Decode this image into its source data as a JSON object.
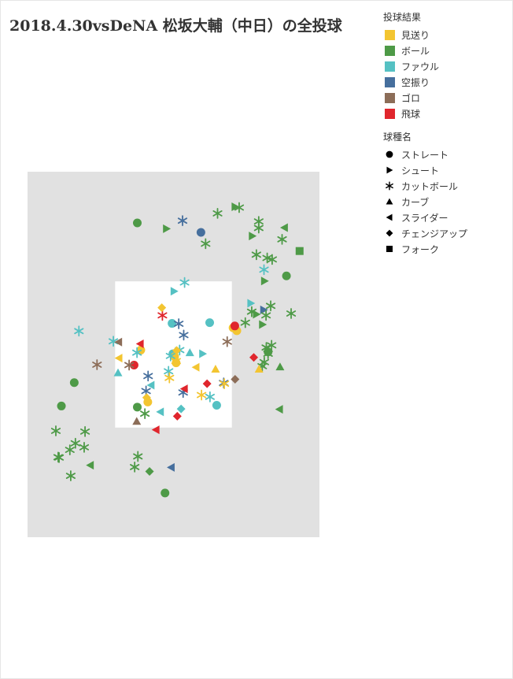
{
  "title": "2018.4.30vsDeNA 松坂大輔（中日）の全投球",
  "legend": {
    "result_title": "投球結果",
    "results": [
      {
        "key": "called_strike",
        "label": "見送り",
        "color": "#f3c531"
      },
      {
        "key": "ball",
        "label": "ボール",
        "color": "#4e9a47"
      },
      {
        "key": "foul",
        "label": "ファウル",
        "color": "#55c1c3"
      },
      {
        "key": "swinging_strike",
        "label": "空振り",
        "color": "#466f9d"
      },
      {
        "key": "grounder",
        "label": "ゴロ",
        "color": "#8c6d58"
      },
      {
        "key": "fly",
        "label": "飛球",
        "color": "#e0262d"
      }
    ],
    "pitch_title": "球種名",
    "pitches": [
      {
        "key": "straight",
        "label": "ストレート",
        "icon": "circle-icon"
      },
      {
        "key": "shoot",
        "label": "シュート",
        "icon": "triangle-right-icon"
      },
      {
        "key": "cutter",
        "label": "カットボール",
        "icon": "asterisk-icon"
      },
      {
        "key": "curve",
        "label": "カーブ",
        "icon": "triangle-up-icon"
      },
      {
        "key": "slider",
        "label": "スライダー",
        "icon": "triangle-left-icon"
      },
      {
        "key": "changeup",
        "label": "チェンジアップ",
        "icon": "diamond-icon"
      },
      {
        "key": "fork",
        "label": "フォーク",
        "icon": "square-icon"
      }
    ]
  },
  "chart_data": {
    "type": "scatter",
    "title": "2018.4.30vsDeNA 松坂大輔（中日）の全投球",
    "x_range": [
      0,
      100
    ],
    "y_range": [
      0,
      100
    ],
    "strike_zone": {
      "x": [
        30,
        70
      ],
      "y": [
        30,
        70
      ]
    },
    "color_by": "投球結果",
    "shape_by": "球種名",
    "points": [
      {
        "x": 37.6,
        "y": 86.0,
        "pitch": "straight",
        "result": "ball"
      },
      {
        "x": 47.1,
        "y": 12.1,
        "pitch": "straight",
        "result": "ball"
      },
      {
        "x": 16.0,
        "y": 42.3,
        "pitch": "straight",
        "result": "ball"
      },
      {
        "x": 11.6,
        "y": 35.9,
        "pitch": "straight",
        "result": "ball"
      },
      {
        "x": 37.6,
        "y": 35.6,
        "pitch": "straight",
        "result": "ball"
      },
      {
        "x": 88.7,
        "y": 71.5,
        "pitch": "straight",
        "result": "ball"
      },
      {
        "x": 82.4,
        "y": 50.7,
        "pitch": "straight",
        "result": "ball"
      },
      {
        "x": 59.4,
        "y": 83.4,
        "pitch": "straight",
        "result": "swinging_strike"
      },
      {
        "x": 62.4,
        "y": 58.7,
        "pitch": "straight",
        "result": "foul"
      },
      {
        "x": 49.5,
        "y": 58.5,
        "pitch": "straight",
        "result": "foul"
      },
      {
        "x": 49.8,
        "y": 50.2,
        "pitch": "straight",
        "result": "foul"
      },
      {
        "x": 64.8,
        "y": 36.1,
        "pitch": "straight",
        "result": "foul"
      },
      {
        "x": 38.8,
        "y": 51.2,
        "pitch": "straight",
        "result": "called_strike"
      },
      {
        "x": 50.4,
        "y": 49.4,
        "pitch": "straight",
        "result": "called_strike"
      },
      {
        "x": 50.9,
        "y": 47.7,
        "pitch": "straight",
        "result": "called_strike"
      },
      {
        "x": 41.2,
        "y": 37.0,
        "pitch": "straight",
        "result": "called_strike"
      },
      {
        "x": 70.4,
        "y": 57.3,
        "pitch": "straight",
        "result": "called_strike"
      },
      {
        "x": 71.7,
        "y": 56.5,
        "pitch": "straight",
        "result": "called_strike"
      },
      {
        "x": 36.5,
        "y": 47.1,
        "pitch": "straight",
        "result": "fly"
      },
      {
        "x": 71.0,
        "y": 57.8,
        "pitch": "straight",
        "result": "fly"
      },
      {
        "x": 47.6,
        "y": 84.4,
        "pitch": "shoot",
        "result": "ball"
      },
      {
        "x": 77.0,
        "y": 82.4,
        "pitch": "shoot",
        "result": "ball"
      },
      {
        "x": 71.1,
        "y": 90.4,
        "pitch": "shoot",
        "result": "ball"
      },
      {
        "x": 81.2,
        "y": 70.1,
        "pitch": "shoot",
        "result": "ball"
      },
      {
        "x": 78.4,
        "y": 61.0,
        "pitch": "shoot",
        "result": "ball"
      },
      {
        "x": 80.5,
        "y": 58.2,
        "pitch": "shoot",
        "result": "ball"
      },
      {
        "x": 50.2,
        "y": 67.3,
        "pitch": "shoot",
        "result": "foul"
      },
      {
        "x": 76.5,
        "y": 64.0,
        "pitch": "shoot",
        "result": "foul"
      },
      {
        "x": 60.0,
        "y": 50.2,
        "pitch": "shoot",
        "result": "foul"
      },
      {
        "x": 80.9,
        "y": 62.2,
        "pitch": "shoot",
        "result": "swinging_strike"
      },
      {
        "x": 65.1,
        "y": 88.6,
        "pitch": "cutter",
        "result": "ball"
      },
      {
        "x": 72.5,
        "y": 90.2,
        "pitch": "cutter",
        "result": "ball"
      },
      {
        "x": 79.2,
        "y": 86.4,
        "pitch": "cutter",
        "result": "ball"
      },
      {
        "x": 79.2,
        "y": 84.6,
        "pitch": "cutter",
        "result": "ball"
      },
      {
        "x": 61.0,
        "y": 80.3,
        "pitch": "cutter",
        "result": "ball"
      },
      {
        "x": 87.2,
        "y": 81.5,
        "pitch": "cutter",
        "result": "ball"
      },
      {
        "x": 78.4,
        "y": 77.3,
        "pitch": "cutter",
        "result": "ball"
      },
      {
        "x": 83.8,
        "y": 76.0,
        "pitch": "cutter",
        "result": "ball"
      },
      {
        "x": 82.1,
        "y": 76.4,
        "pitch": "cutter",
        "result": "ball"
      },
      {
        "x": 83.3,
        "y": 63.3,
        "pitch": "cutter",
        "result": "ball"
      },
      {
        "x": 76.8,
        "y": 61.7,
        "pitch": "cutter",
        "result": "ball"
      },
      {
        "x": 90.3,
        "y": 61.2,
        "pitch": "cutter",
        "result": "ball"
      },
      {
        "x": 81.7,
        "y": 60.7,
        "pitch": "cutter",
        "result": "ball"
      },
      {
        "x": 74.6,
        "y": 58.7,
        "pitch": "cutter",
        "result": "ball"
      },
      {
        "x": 83.6,
        "y": 52.5,
        "pitch": "cutter",
        "result": "ball"
      },
      {
        "x": 81.8,
        "y": 51.9,
        "pitch": "cutter",
        "result": "ball"
      },
      {
        "x": 82.4,
        "y": 50.2,
        "pitch": "cutter",
        "result": "ball"
      },
      {
        "x": 81.1,
        "y": 47.9,
        "pitch": "cutter",
        "result": "ball"
      },
      {
        "x": 80.4,
        "y": 46.8,
        "pitch": "cutter",
        "result": "ball"
      },
      {
        "x": 40.2,
        "y": 33.8,
        "pitch": "cutter",
        "result": "ball"
      },
      {
        "x": 9.7,
        "y": 29.1,
        "pitch": "cutter",
        "result": "ball"
      },
      {
        "x": 19.7,
        "y": 28.9,
        "pitch": "cutter",
        "result": "ball"
      },
      {
        "x": 16.4,
        "y": 25.7,
        "pitch": "cutter",
        "result": "ball"
      },
      {
        "x": 19.4,
        "y": 24.6,
        "pitch": "cutter",
        "result": "ball"
      },
      {
        "x": 14.5,
        "y": 23.9,
        "pitch": "cutter",
        "result": "ball"
      },
      {
        "x": 10.5,
        "y": 21.9,
        "pitch": "cutter",
        "result": "ball"
      },
      {
        "x": 10.8,
        "y": 21.8,
        "pitch": "cutter",
        "result": "ball"
      },
      {
        "x": 37.8,
        "y": 22.1,
        "pitch": "cutter",
        "result": "ball"
      },
      {
        "x": 36.7,
        "y": 19.2,
        "pitch": "cutter",
        "result": "ball"
      },
      {
        "x": 14.8,
        "y": 16.8,
        "pitch": "cutter",
        "result": "ball"
      },
      {
        "x": 53.8,
        "y": 69.7,
        "pitch": "cutter",
        "result": "foul"
      },
      {
        "x": 81.0,
        "y": 73.2,
        "pitch": "cutter",
        "result": "foul"
      },
      {
        "x": 17.6,
        "y": 56.4,
        "pitch": "cutter",
        "result": "foul"
      },
      {
        "x": 29.4,
        "y": 53.6,
        "pitch": "cutter",
        "result": "foul"
      },
      {
        "x": 37.5,
        "y": 50.5,
        "pitch": "cutter",
        "result": "foul"
      },
      {
        "x": 52.1,
        "y": 51.2,
        "pitch": "cutter",
        "result": "foul"
      },
      {
        "x": 49.0,
        "y": 49.6,
        "pitch": "cutter",
        "result": "foul"
      },
      {
        "x": 48.3,
        "y": 45.4,
        "pitch": "cutter",
        "result": "foul"
      },
      {
        "x": 62.5,
        "y": 38.4,
        "pitch": "cutter",
        "result": "foul"
      },
      {
        "x": 53.1,
        "y": 86.6,
        "pitch": "cutter",
        "result": "swinging_strike"
      },
      {
        "x": 51.8,
        "y": 58.4,
        "pitch": "cutter",
        "result": "swinging_strike"
      },
      {
        "x": 53.5,
        "y": 55.3,
        "pitch": "cutter",
        "result": "swinging_strike"
      },
      {
        "x": 41.3,
        "y": 44.1,
        "pitch": "cutter",
        "result": "swinging_strike"
      },
      {
        "x": 40.6,
        "y": 40.0,
        "pitch": "cutter",
        "result": "swinging_strike"
      },
      {
        "x": 53.3,
        "y": 39.6,
        "pitch": "cutter",
        "result": "swinging_strike"
      },
      {
        "x": 67.2,
        "y": 42.2,
        "pitch": "cutter",
        "result": "swinging_strike"
      },
      {
        "x": 23.8,
        "y": 47.2,
        "pitch": "cutter",
        "result": "grounder"
      },
      {
        "x": 34.8,
        "y": 47.1,
        "pitch": "cutter",
        "result": "grounder"
      },
      {
        "x": 68.4,
        "y": 53.5,
        "pitch": "cutter",
        "result": "grounder"
      },
      {
        "x": 50.9,
        "y": 48.2,
        "pitch": "cutter",
        "result": "called_strike"
      },
      {
        "x": 48.6,
        "y": 43.6,
        "pitch": "cutter",
        "result": "called_strike"
      },
      {
        "x": 59.6,
        "y": 38.9,
        "pitch": "cutter",
        "result": "called_strike"
      },
      {
        "x": 67.4,
        "y": 42.0,
        "pitch": "cutter",
        "result": "called_strike"
      },
      {
        "x": 46.2,
        "y": 60.7,
        "pitch": "cutter",
        "result": "fly"
      },
      {
        "x": 86.5,
        "y": 46.6,
        "pitch": "curve",
        "result": "ball"
      },
      {
        "x": 31.0,
        "y": 45.0,
        "pitch": "curve",
        "result": "foul"
      },
      {
        "x": 55.6,
        "y": 50.5,
        "pitch": "curve",
        "result": "foul"
      },
      {
        "x": 64.4,
        "y": 46.0,
        "pitch": "curve",
        "result": "called_strike"
      },
      {
        "x": 79.3,
        "y": 46.0,
        "pitch": "curve",
        "result": "called_strike"
      },
      {
        "x": 37.4,
        "y": 31.7,
        "pitch": "curve",
        "result": "grounder"
      },
      {
        "x": 88.0,
        "y": 84.7,
        "pitch": "slider",
        "result": "ball"
      },
      {
        "x": 86.3,
        "y": 35.0,
        "pitch": "slider",
        "result": "ball"
      },
      {
        "x": 21.5,
        "y": 19.7,
        "pitch": "slider",
        "result": "ball"
      },
      {
        "x": 31.2,
        "y": 53.4,
        "pitch": "slider",
        "result": "grounder"
      },
      {
        "x": 42.3,
        "y": 41.6,
        "pitch": "slider",
        "result": "foul"
      },
      {
        "x": 45.5,
        "y": 34.3,
        "pitch": "slider",
        "result": "foul"
      },
      {
        "x": 31.3,
        "y": 49.0,
        "pitch": "slider",
        "result": "called_strike"
      },
      {
        "x": 57.7,
        "y": 46.5,
        "pitch": "slider",
        "result": "called_strike"
      },
      {
        "x": 38.6,
        "y": 52.9,
        "pitch": "slider",
        "result": "fly"
      },
      {
        "x": 53.7,
        "y": 40.6,
        "pitch": "slider",
        "result": "fly"
      },
      {
        "x": 44.0,
        "y": 29.4,
        "pitch": "slider",
        "result": "fly"
      },
      {
        "x": 49.2,
        "y": 19.1,
        "pitch": "slider",
        "result": "swinging_strike"
      },
      {
        "x": 41.8,
        "y": 18.0,
        "pitch": "changeup",
        "result": "ball"
      },
      {
        "x": 46.0,
        "y": 62.8,
        "pitch": "changeup",
        "result": "called_strike"
      },
      {
        "x": 51.1,
        "y": 51.1,
        "pitch": "changeup",
        "result": "called_strike"
      },
      {
        "x": 40.8,
        "y": 38.2,
        "pitch": "changeup",
        "result": "called_strike"
      },
      {
        "x": 52.6,
        "y": 35.1,
        "pitch": "changeup",
        "result": "foul"
      },
      {
        "x": 51.3,
        "y": 33.1,
        "pitch": "changeup",
        "result": "fly"
      },
      {
        "x": 61.5,
        "y": 42.0,
        "pitch": "changeup",
        "result": "fly"
      },
      {
        "x": 77.5,
        "y": 49.2,
        "pitch": "changeup",
        "result": "fly"
      },
      {
        "x": 71.1,
        "y": 43.2,
        "pitch": "changeup",
        "result": "grounder"
      },
      {
        "x": 93.2,
        "y": 78.3,
        "pitch": "fork",
        "result": "ball"
      }
    ]
  }
}
